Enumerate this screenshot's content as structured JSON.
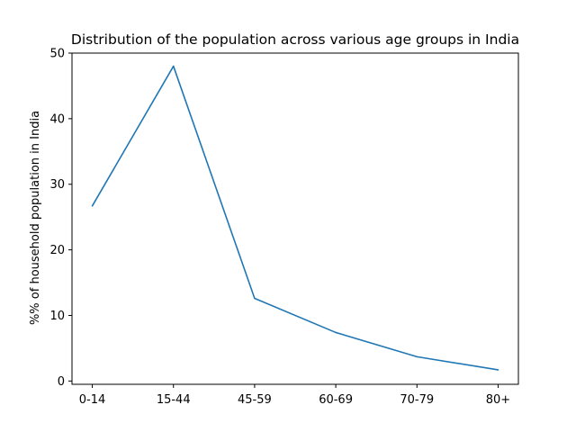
{
  "chart_data": {
    "type": "line",
    "title": "Distribution of the population across various age groups in India",
    "xlabel": "",
    "ylabel": "%% of household population in India",
    "categories": [
      "0-14",
      "15-44",
      "45-59",
      "60-69",
      "70-79",
      "80+"
    ],
    "series": [
      {
        "values": [
          26.7,
          48.0,
          12.6,
          7.4,
          3.7,
          1.7
        ]
      }
    ],
    "yticks": [
      0,
      10,
      20,
      30,
      40,
      50
    ],
    "ylim": [
      -0.5,
      50
    ],
    "grid": false,
    "legend": "none",
    "colors": {
      "line": "#1f77b4",
      "axes": "#000000",
      "background": "#ffffff"
    }
  }
}
